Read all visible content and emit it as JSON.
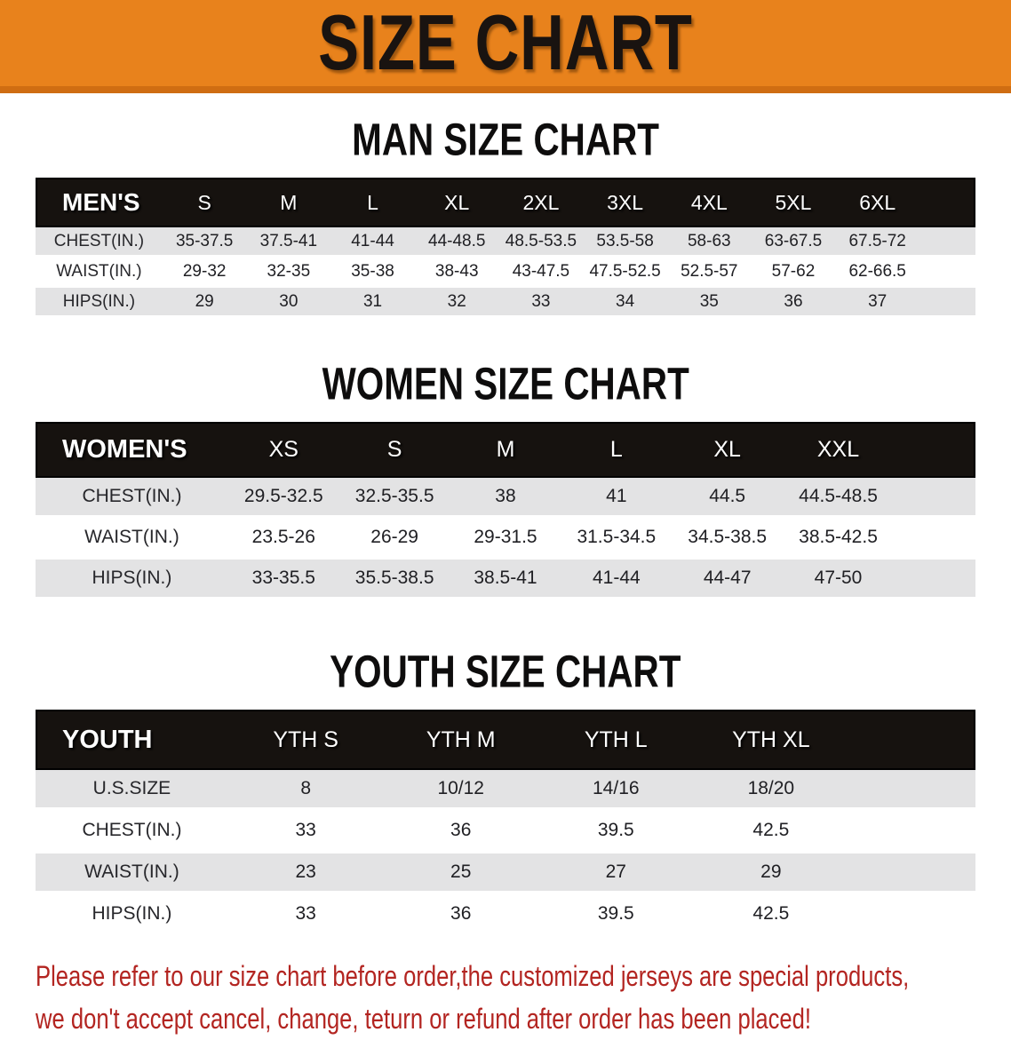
{
  "banner": {
    "title": "SIZE CHART",
    "bg_color": "#e8821c",
    "text_color": "#191310"
  },
  "sections": [
    {
      "title": "MAN SIZE CHART",
      "table": {
        "header_label": "MEN'S",
        "columns": [
          "S",
          "M",
          "L",
          "XL",
          "2XL",
          "3XL",
          "4XL",
          "5XL",
          "6XL"
        ],
        "rows": [
          {
            "label": "CHEST(IN.)",
            "values": [
              "35-37.5",
              "37.5-41",
              "41-44",
              "44-48.5",
              "48.5-53.5",
              "53.5-58",
              "58-63",
              "63-67.5",
              "67.5-72"
            ]
          },
          {
            "label": "WAIST(IN.)",
            "values": [
              "29-32",
              "32-35",
              "35-38",
              "38-43",
              "43-47.5",
              "47.5-52.5",
              "52.5-57",
              "57-62",
              "62-66.5"
            ]
          },
          {
            "label": "HIPS(IN.)",
            "values": [
              "29",
              "30",
              "31",
              "32",
              "33",
              "34",
              "35",
              "36",
              "37"
            ]
          }
        ]
      }
    },
    {
      "title": "WOMEN SIZE CHART",
      "table": {
        "header_label": "WOMEN'S",
        "columns": [
          "XS",
          "S",
          "M",
          "L",
          "XL",
          "XXL"
        ],
        "rows": [
          {
            "label": "CHEST(IN.)",
            "values": [
              "29.5-32.5",
              "32.5-35.5",
              "38",
              "41",
              "44.5",
              "44.5-48.5"
            ]
          },
          {
            "label": "WAIST(IN.)",
            "values": [
              "23.5-26",
              "26-29",
              "29-31.5",
              "31.5-34.5",
              "34.5-38.5",
              "38.5-42.5"
            ]
          },
          {
            "label": "HIPS(IN.)",
            "values": [
              "33-35.5",
              "35.5-38.5",
              "38.5-41",
              "41-44",
              "44-47",
              "47-50"
            ]
          }
        ]
      }
    },
    {
      "title": "YOUTH SIZE CHART",
      "table": {
        "header_label": "YOUTH",
        "columns": [
          "YTH S",
          "YTH M",
          "YTH L",
          "YTH XL"
        ],
        "rows": [
          {
            "label": "U.S.SIZE",
            "values": [
              "8",
              "10/12",
              "14/16",
              "18/20"
            ]
          },
          {
            "label": "CHEST(IN.)",
            "values": [
              "33",
              "36",
              "39.5",
              "42.5"
            ]
          },
          {
            "label": "WAIST(IN.)",
            "values": [
              "23",
              "25",
              "27",
              "29"
            ]
          },
          {
            "label": "HIPS(IN.)",
            "values": [
              "33",
              "36",
              "39.5",
              "42.5"
            ]
          }
        ]
      }
    }
  ],
  "disclaimer": {
    "line1": "Please refer to our size chart before order,the customized jerseys are special products,",
    "line2": "we don't accept cancel, change, teturn or refund after order has been placed!",
    "color": "#b32521"
  }
}
